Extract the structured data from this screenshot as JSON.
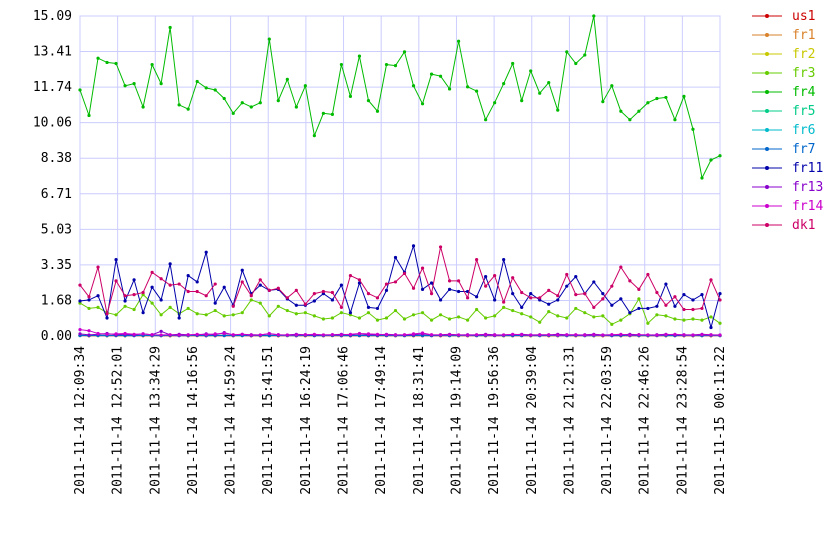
{
  "chart_data": {
    "type": "line",
    "ylim": [
      0,
      15.09
    ],
    "y_ticks": [
      "0.00",
      "1.68",
      "3.35",
      "5.03",
      "6.71",
      "8.38",
      "10.06",
      "11.74",
      "13.41",
      "15.09"
    ],
    "x_tick_labels": [
      "2011-11-14 12:09:34",
      "2011-11-14 12:52:01",
      "2011-11-14 13:34:29",
      "2011-11-14 14:16:56",
      "2011-11-14 14:59:24",
      "2011-11-14 15:41:51",
      "2011-11-14 16:24:19",
      "2011-11-14 17:06:46",
      "2011-11-14 17:49:14",
      "2011-11-14 18:31:41",
      "2011-11-14 19:14:09",
      "2011-11-14 19:56:36",
      "2011-11-14 20:39:04",
      "2011-11-14 21:21:31",
      "2011-11-14 22:03:59",
      "2011-11-14 22:46:26",
      "2011-11-14 23:28:54",
      "2011-11-15 00:11:22"
    ],
    "grid": true,
    "legend_position": "right",
    "series": [
      {
        "name": "us1",
        "color": "#cc0000",
        "values": [
          0.02,
          0.01,
          0.02,
          0.01,
          0.02,
          0.01,
          0.02,
          0.01,
          0.01,
          0.02,
          0.01,
          0.02,
          0.01,
          0.02,
          0.01,
          0.01,
          0.02,
          0.01,
          0.02,
          0.01,
          0.01,
          0.02,
          0.01,
          0.02,
          0.01,
          0.01,
          0.02,
          0.01,
          0.02,
          0.01,
          0.01,
          0.02,
          0.01,
          0.01,
          0.02,
          0.01,
          0.02,
          0.01,
          0.01,
          0.02,
          0.01,
          0.02,
          0.01,
          0.01,
          0.02,
          0.01,
          0.02,
          0.01,
          0.01,
          0.02,
          0.01,
          0.02,
          0.01,
          0.01,
          0.02,
          0.01,
          0.02,
          0.01,
          0.01,
          0.02,
          0.01,
          0.02,
          0.01,
          0.01,
          0.02,
          0.01,
          0.02,
          0.01,
          0.01,
          0.02,
          0.01,
          0.02
        ]
      },
      {
        "name": "fr1",
        "color": "#d9822b",
        "values": [
          0.03,
          0.02,
          0.03,
          0.02,
          0.03,
          0.02,
          0.03,
          0.02,
          0.02,
          0.03,
          0.02,
          0.03,
          0.02,
          0.03,
          0.02,
          0.02,
          0.03,
          0.02,
          0.03,
          0.02,
          0.02,
          0.03,
          0.02,
          0.03,
          0.02,
          0.02,
          0.03,
          0.02,
          0.03,
          0.02,
          0.02,
          0.03,
          0.02,
          0.02,
          0.03,
          0.02,
          0.03,
          0.02,
          0.02,
          0.03,
          0.02,
          0.03,
          0.02,
          0.02,
          0.03,
          0.02,
          0.03,
          0.02,
          0.02,
          0.03,
          0.02,
          0.03,
          0.02,
          0.02,
          0.03,
          0.02,
          0.03,
          0.02,
          0.02,
          0.03,
          0.02,
          0.03,
          0.02,
          0.02,
          0.03,
          0.02,
          0.03,
          0.02,
          0.02,
          0.03,
          0.02,
          0.03
        ]
      },
      {
        "name": "fr2",
        "color": "#c8c800",
        "values": [
          0.03,
          0.02,
          0.02,
          0.03,
          0.02,
          0.02,
          0.03,
          0.02,
          0.03,
          0.02,
          0.02,
          0.03,
          0.02,
          0.02,
          0.03,
          0.02,
          0.03,
          0.02,
          0.02,
          0.03,
          0.02,
          0.02,
          0.03,
          0.02,
          0.03,
          0.02,
          0.02,
          0.03,
          0.02,
          0.02,
          0.03,
          0.02,
          0.03,
          0.02,
          0.02,
          0.03,
          0.02,
          0.02,
          0.03,
          0.02,
          0.03,
          0.02,
          0.02,
          0.03,
          0.02,
          0.02,
          0.03,
          0.02,
          0.03,
          0.02,
          0.02,
          0.03,
          0.02,
          0.02,
          0.03,
          0.02,
          0.03,
          0.02,
          0.02,
          0.03,
          0.02,
          0.02,
          0.03,
          0.02,
          0.03,
          0.02,
          0.02,
          0.03,
          0.02,
          0.02,
          0.03,
          0.02
        ]
      },
      {
        "name": "fr3",
        "color": "#66cc00",
        "values": [
          1.55,
          1.3,
          1.35,
          1.1,
          1.0,
          1.4,
          1.25,
          1.95,
          1.55,
          1.0,
          1.35,
          1.05,
          1.3,
          1.05,
          1.0,
          1.2,
          0.95,
          1.0,
          1.1,
          1.7,
          1.55,
          0.95,
          1.4,
          1.2,
          1.05,
          1.1,
          0.95,
          0.8,
          0.85,
          1.1,
          1.0,
          0.85,
          1.1,
          0.75,
          0.85,
          1.2,
          0.8,
          1.0,
          1.1,
          0.75,
          1.0,
          0.8,
          0.9,
          0.75,
          1.25,
          0.85,
          0.95,
          1.35,
          1.2,
          1.05,
          0.9,
          0.65,
          1.15,
          0.95,
          0.85,
          1.3,
          1.1,
          0.9,
          0.95,
          0.55,
          0.75,
          1.05,
          1.75,
          0.6,
          1.0,
          0.95,
          0.8,
          0.75,
          0.8,
          0.75,
          0.9,
          0.6
        ]
      },
      {
        "name": "fr4",
        "color": "#00bb00",
        "values": [
          11.6,
          10.4,
          13.1,
          12.9,
          12.85,
          11.8,
          11.9,
          10.8,
          12.8,
          11.9,
          14.55,
          10.9,
          10.7,
          12.0,
          11.7,
          11.6,
          11.2,
          10.5,
          11.0,
          10.8,
          11.0,
          14.0,
          11.1,
          12.1,
          10.8,
          11.8,
          9.45,
          10.5,
          10.45,
          12.8,
          11.3,
          13.2,
          11.1,
          10.6,
          12.8,
          12.75,
          13.4,
          11.8,
          10.95,
          12.35,
          12.25,
          11.65,
          13.9,
          11.75,
          11.55,
          10.2,
          11.0,
          11.9,
          12.85,
          11.1,
          12.5,
          11.45,
          11.95,
          10.65,
          13.4,
          12.85,
          13.25,
          15.09,
          11.05,
          11.8,
          10.6,
          10.2,
          10.6,
          11.0,
          11.2,
          11.25,
          10.2,
          11.3,
          9.75,
          7.45,
          8.3,
          8.5
        ]
      },
      {
        "name": "fr5",
        "color": "#00cc88",
        "values": [
          0.04,
          0.03,
          0.04,
          0.03,
          0.03,
          0.04,
          0.03,
          0.04,
          0.03,
          0.03,
          0.04,
          0.03,
          0.04,
          0.03,
          0.03,
          0.04,
          0.03,
          0.04,
          0.03,
          0.03,
          0.04,
          0.03,
          0.04,
          0.03,
          0.03,
          0.04,
          0.03,
          0.04,
          0.03,
          0.03,
          0.04,
          0.03,
          0.04,
          0.03,
          0.03,
          0.04,
          0.03,
          0.04,
          0.03,
          0.03,
          0.04,
          0.03,
          0.04,
          0.03,
          0.03,
          0.04,
          0.03,
          0.04,
          0.03,
          0.03,
          0.04,
          0.03,
          0.04,
          0.03,
          0.03,
          0.04,
          0.03,
          0.04,
          0.03,
          0.03,
          0.04,
          0.03,
          0.04,
          0.03,
          0.03,
          0.04,
          0.03,
          0.04,
          0.03,
          0.03,
          0.04,
          0.03
        ]
      },
      {
        "name": "fr6",
        "color": "#00bbcc",
        "values": [
          0.02,
          0.03,
          0.02,
          0.02,
          0.03,
          0.02,
          0.02,
          0.03,
          0.02,
          0.02,
          0.03,
          0.02,
          0.02,
          0.03,
          0.02,
          0.02,
          0.03,
          0.02,
          0.02,
          0.03,
          0.02,
          0.02,
          0.03,
          0.02,
          0.02,
          0.03,
          0.02,
          0.02,
          0.03,
          0.02,
          0.02,
          0.03,
          0.02,
          0.02,
          0.03,
          0.02,
          0.02,
          0.03,
          0.02,
          0.02,
          0.03,
          0.02,
          0.02,
          0.03,
          0.02,
          0.02,
          0.03,
          0.02,
          0.02,
          0.03,
          0.02,
          0.02,
          0.03,
          0.02,
          0.02,
          0.03,
          0.02,
          0.02,
          0.03,
          0.02,
          0.02,
          0.03,
          0.02,
          0.02,
          0.03,
          0.02,
          0.02,
          0.03,
          0.02,
          0.02,
          0.03,
          0.02
        ]
      },
      {
        "name": "fr7",
        "color": "#0066cc",
        "values": [
          0.03,
          0.02,
          0.03,
          0.03,
          0.02,
          0.03,
          0.02,
          0.03,
          0.03,
          0.02,
          0.03,
          0.02,
          0.03,
          0.03,
          0.02,
          0.03,
          0.02,
          0.03,
          0.03,
          0.02,
          0.03,
          0.02,
          0.03,
          0.03,
          0.02,
          0.03,
          0.02,
          0.03,
          0.03,
          0.02,
          0.03,
          0.02,
          0.03,
          0.03,
          0.02,
          0.03,
          0.02,
          0.03,
          0.03,
          0.02,
          0.03,
          0.02,
          0.03,
          0.03,
          0.02,
          0.03,
          0.02,
          0.03,
          0.03,
          0.02,
          0.03,
          0.02,
          0.03,
          0.03,
          0.02,
          0.03,
          0.02,
          0.03,
          0.03,
          0.02,
          0.03,
          0.02,
          0.03,
          0.03,
          0.02,
          0.03,
          0.02,
          0.03,
          0.03,
          0.02,
          0.03,
          0.02
        ]
      },
      {
        "name": "fr11",
        "color": "#0000aa",
        "values": [
          1.65,
          1.7,
          1.9,
          0.85,
          3.6,
          1.65,
          2.65,
          1.1,
          2.3,
          1.7,
          3.4,
          0.85,
          2.85,
          2.55,
          3.95,
          1.55,
          2.3,
          1.45,
          3.1,
          2.0,
          2.4,
          2.15,
          2.2,
          1.75,
          1.45,
          1.45,
          1.65,
          2.0,
          1.7,
          2.4,
          1.1,
          2.5,
          1.35,
          1.3,
          2.15,
          3.7,
          3.0,
          4.25,
          2.2,
          2.5,
          1.7,
          2.2,
          2.1,
          2.1,
          1.85,
          2.8,
          1.7,
          3.6,
          2.0,
          1.35,
          2.0,
          1.7,
          1.5,
          1.7,
          2.35,
          2.8,
          2.0,
          2.55,
          2.0,
          1.45,
          1.75,
          1.1,
          1.3,
          1.3,
          1.4,
          2.45,
          1.4,
          1.95,
          1.7,
          1.95,
          0.4,
          2.0
        ]
      },
      {
        "name": "fr13",
        "color": "#8800cc",
        "values": [
          0.1,
          0.05,
          0.08,
          0.12,
          0.06,
          0.08,
          0.05,
          0.1,
          0.06,
          0.22,
          0.05,
          0.08,
          0.06,
          0.05,
          0.1,
          0.06,
          0.16,
          0.05,
          0.08,
          0.06,
          0.05,
          0.1,
          0.06,
          0.05,
          0.08,
          0.06,
          0.05,
          0.05,
          0.06,
          0.08,
          0.05,
          0.1,
          0.06,
          0.05,
          0.08,
          0.06,
          0.05,
          0.06,
          0.1,
          0.05,
          0.06,
          0.08,
          0.05,
          0.06,
          0.05,
          0.08,
          0.06,
          0.05,
          0.06,
          0.08,
          0.05,
          0.06,
          0.05,
          0.08,
          0.06,
          0.05,
          0.06,
          0.08,
          0.05,
          0.06,
          0.05,
          0.08,
          0.06,
          0.05,
          0.06,
          0.08,
          0.05,
          0.06,
          0.05,
          0.08,
          0.06,
          0.05
        ]
      },
      {
        "name": "fr14",
        "color": "#cc00cc",
        "values": [
          0.3,
          0.25,
          0.12,
          0.08,
          0.1,
          0.12,
          0.08,
          0.1,
          0.06,
          0.05,
          0.06,
          0.04,
          0.05,
          0.08,
          0.06,
          0.1,
          0.12,
          0.06,
          0.08,
          0.04,
          0.05,
          0.12,
          0.06,
          0.04,
          0.05,
          0.06,
          0.08,
          0.05,
          0.06,
          0.05,
          0.08,
          0.12,
          0.1,
          0.08,
          0.06,
          0.05,
          0.06,
          0.1,
          0.14,
          0.06,
          0.05,
          0.06,
          0.05,
          0.04,
          0.06,
          0.05,
          0.04,
          0.05,
          0.08,
          0.06,
          0.04,
          0.05,
          0.06,
          0.04,
          0.05,
          0.06,
          0.04,
          0.05,
          0.04,
          0.06,
          0.08,
          0.04,
          0.06,
          0.05,
          0.04,
          0.06,
          0.08,
          0.05,
          0.04,
          0.06,
          0.05,
          0.04
        ]
      },
      {
        "name": "dk1",
        "color": "#cc0066",
        "values": [
          2.4,
          1.85,
          3.25,
          1.05,
          2.6,
          1.9,
          1.95,
          2.05,
          3.0,
          2.7,
          2.4,
          2.45,
          2.1,
          2.1,
          1.9,
          2.45,
          null,
          1.4,
          2.55,
          1.9,
          2.65,
          2.15,
          2.25,
          1.8,
          2.15,
          1.5,
          2.0,
          2.1,
          2.05,
          1.35,
          2.85,
          2.65,
          2.0,
          1.8,
          2.45,
          2.55,
          2.95,
          2.25,
          3.2,
          2.0,
          4.2,
          2.6,
          2.6,
          1.8,
          3.6,
          2.35,
          2.85,
          1.6,
          2.75,
          2.05,
          1.8,
          1.8,
          2.15,
          1.9,
          2.9,
          1.95,
          2.0,
          1.35,
          1.75,
          2.35,
          3.25,
          2.6,
          2.2,
          2.9,
          2.05,
          1.45,
          1.85,
          1.25,
          1.25,
          1.3,
          2.65,
          1.7
        ]
      }
    ]
  }
}
